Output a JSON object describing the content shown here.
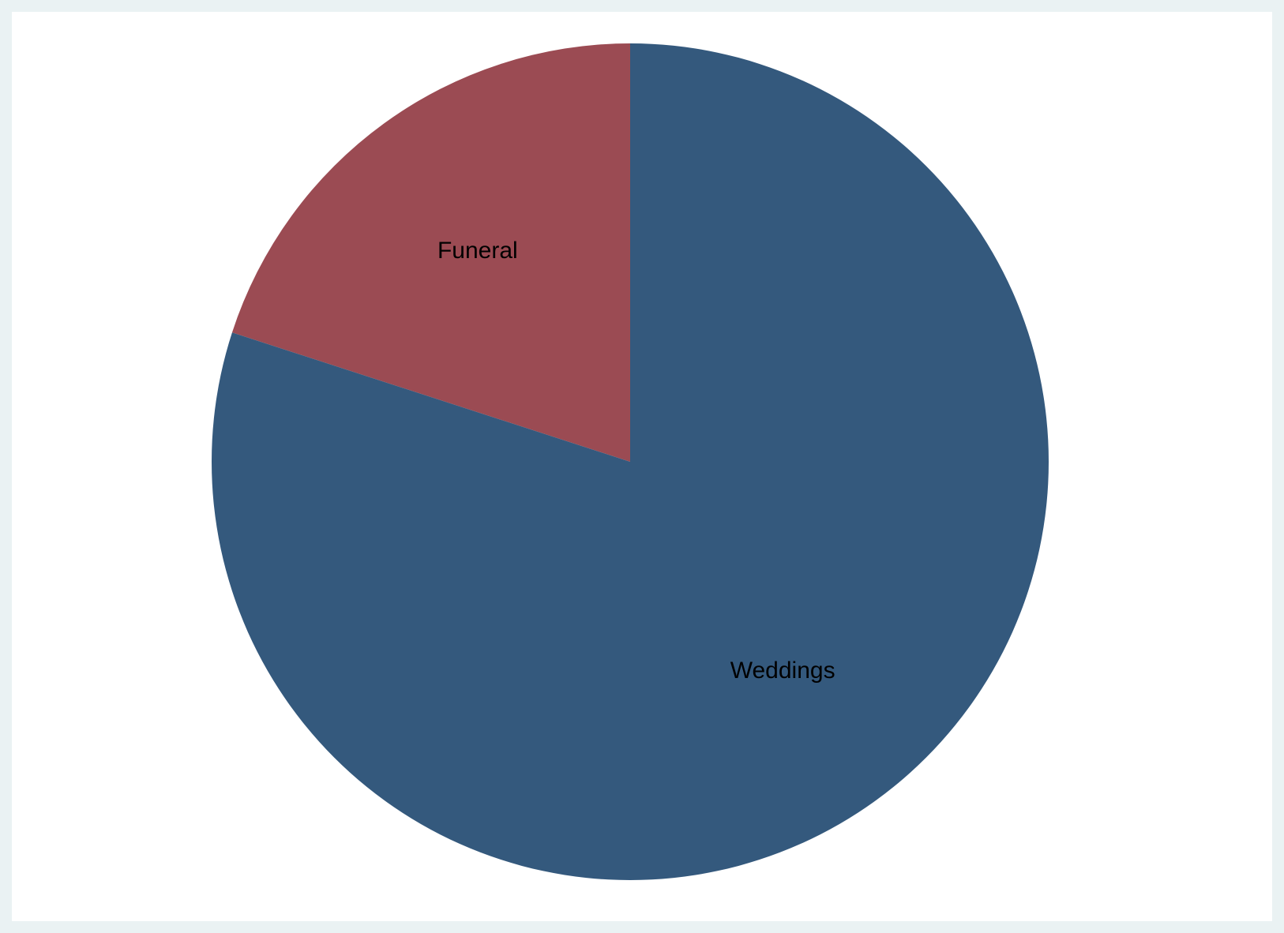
{
  "chart_data": {
    "type": "pie",
    "title": "",
    "start_angle_deg": 0,
    "direction": "counterclockwise",
    "slices": [
      {
        "label": "Funeral",
        "value": 20,
        "color": "#9b4b53"
      },
      {
        "label": "Weddings",
        "value": 80,
        "color": "#34597d"
      }
    ],
    "legend": "none"
  }
}
